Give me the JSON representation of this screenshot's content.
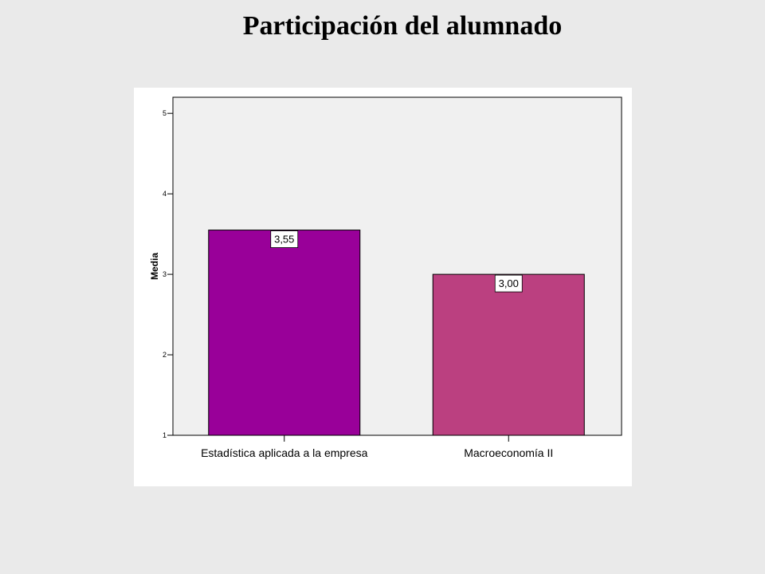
{
  "title": "Participación del alumnado",
  "chart_data": {
    "type": "bar",
    "categories": [
      "Estadística aplicada a la empresa",
      "Macroeconomía II"
    ],
    "values": [
      3.55,
      3.0
    ],
    "data_labels": [
      "3,55",
      "3,00"
    ],
    "bar_colors": [
      "#990099",
      "#bb4080"
    ],
    "ylabel": "Media",
    "xlabel": "",
    "ylim": [
      1,
      5.2
    ],
    "yticks": [
      1,
      2,
      3,
      4,
      5
    ],
    "grid": false,
    "legend": "none",
    "plot_background": "#f0f0f0"
  }
}
